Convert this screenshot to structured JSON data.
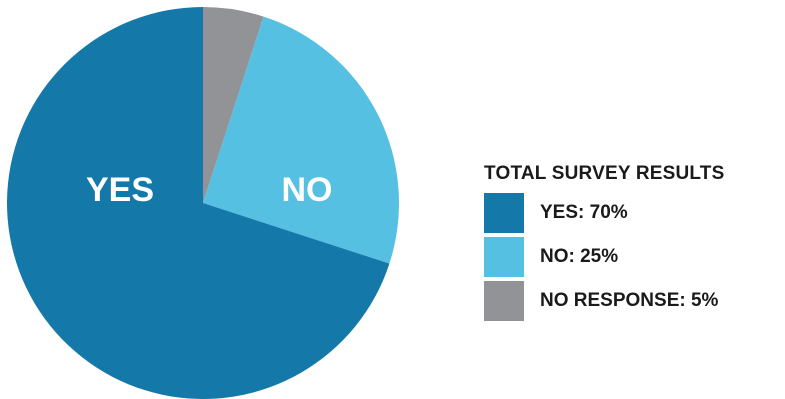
{
  "chart_data": {
    "type": "pie",
    "title": "TOTAL SURVEY RESULTS",
    "slices": [
      {
        "category": "YES",
        "value": 70,
        "color": "#1479a8",
        "inner_label": "YES",
        "legend_label": "YES: 70%"
      },
      {
        "category": "NO",
        "value": 25,
        "color": "#56c0e3",
        "inner_label": "NO",
        "legend_label": "NO: 25%"
      },
      {
        "category": "NO RESPONSE",
        "value": 5,
        "color": "#929396",
        "inner_label": "",
        "legend_label": "NO RESPONSE: 5%"
      }
    ],
    "legend_position": "right"
  }
}
